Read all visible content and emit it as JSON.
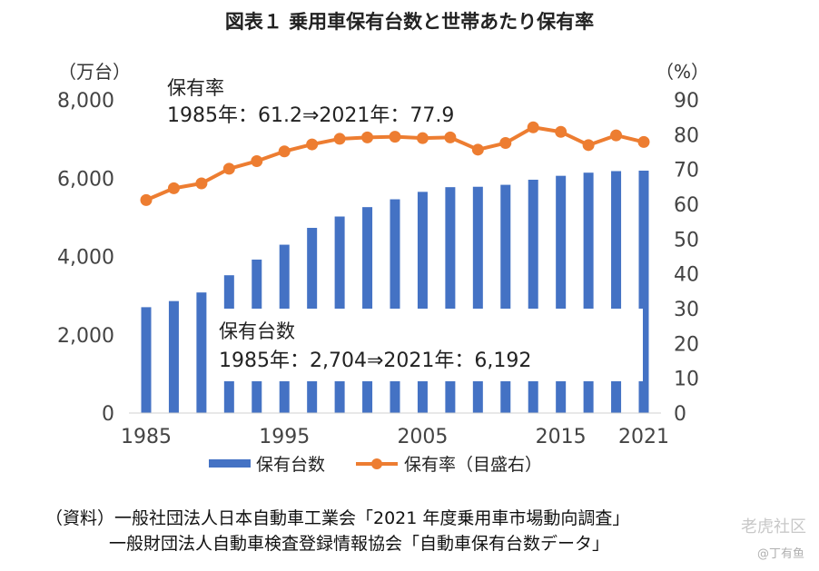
{
  "chart_data": {
    "type": "bar+line",
    "title": "図表１ 乗用車保有台数と世帯あたり保有率",
    "left_axis": {
      "unit_label": "（万台）",
      "ylim": [
        0,
        8000
      ],
      "ticks": [
        0,
        2000,
        4000,
        6000,
        8000
      ],
      "tick_labels": [
        "0",
        "2,000",
        "4,000",
        "6,000",
        "8,000"
      ]
    },
    "right_axis": {
      "unit_label": "（%）",
      "ylim": [
        0,
        90
      ],
      "ticks": [
        0,
        10,
        20,
        30,
        40,
        50,
        60,
        70,
        80,
        90
      ],
      "tick_labels": [
        "0",
        "10",
        "20",
        "30",
        "40",
        "50",
        "60",
        "70",
        "80",
        "90"
      ]
    },
    "x_tick_labels": [
      {
        "year": 1985,
        "label": "1985"
      },
      {
        "year": 1995,
        "label": "1995"
      },
      {
        "year": 2005,
        "label": "2005"
      },
      {
        "year": 2015,
        "label": "2015"
      },
      {
        "year": 2021,
        "label": "2021"
      }
    ],
    "x": [
      1985,
      1987,
      1989,
      1991,
      1993,
      1995,
      1997,
      1999,
      2001,
      2003,
      2005,
      2007,
      2009,
      2011,
      2013,
      2015,
      2017,
      2019,
      2021
    ],
    "series": [
      {
        "name": "保有台数",
        "type": "bar",
        "axis": "left",
        "color": "#4472c4",
        "values": [
          2704,
          2860,
          3080,
          3520,
          3920,
          4300,
          4730,
          5020,
          5260,
          5460,
          5650,
          5770,
          5780,
          5830,
          5960,
          6060,
          6140,
          6180,
          6192
        ]
      },
      {
        "name": "保有率（目盛右）",
        "type": "line",
        "axis": "right",
        "color": "#ed7d31",
        "values": [
          61.2,
          64.6,
          66.0,
          70.2,
          72.4,
          75.2,
          77.2,
          78.8,
          79.2,
          79.4,
          79.0,
          79.2,
          75.7,
          77.6,
          82.1,
          80.8,
          77.0,
          79.8,
          77.9
        ]
      }
    ],
    "annotations": {
      "rate_title": "保有率",
      "rate_detail": "1985年：61.2⇒2021年：77.9",
      "count_title": "保有台数",
      "count_detail": "1985年：2,704⇒2021年：6,192"
    },
    "legend": {
      "position": "bottom",
      "bar_label": "保有台数",
      "line_label": "保有率（目盛右）"
    }
  },
  "source": {
    "line1": "（資料）一般社団法人日本自動車工業会「2021 年度乗用車市場動向調査」",
    "line2": "一般財団法人自動車検査登録情報協会「自動車保有台数データ」"
  },
  "watermark": {
    "community": "老虎社区",
    "author": "@丁有鱼"
  },
  "colors": {
    "bar": "#4472c4",
    "line": "#ed7d31",
    "axis_text": "#333333"
  }
}
